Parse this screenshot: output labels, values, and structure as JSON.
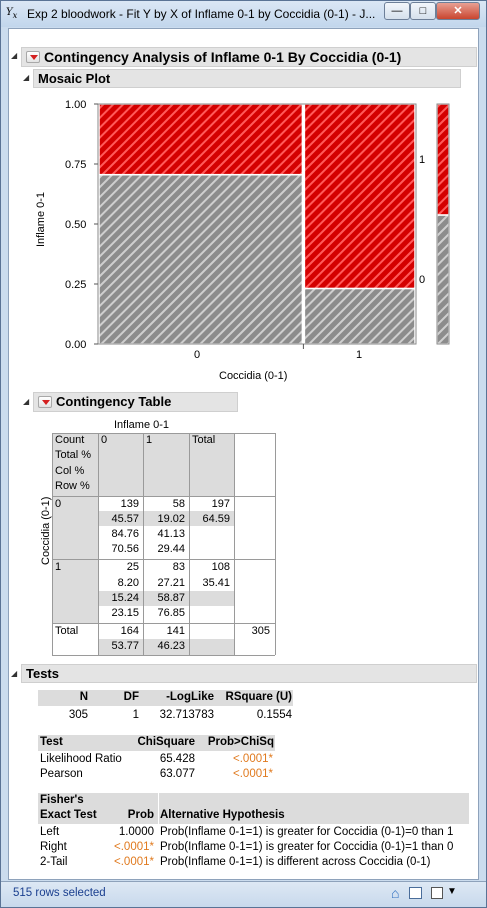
{
  "window": {
    "icon": "jmp-fit-y-by-x-icon",
    "title": "Exp 2 bloodwork - Fit Y by X of Inflame 0-1 by Coccidia (0-1) - J...",
    "min": "—",
    "max": "□",
    "close": "✕"
  },
  "report": {
    "title": "Contingency Analysis of Inflame 0-1 By Coccidia (0-1)"
  },
  "mosaic": {
    "header": "Mosaic Plot",
    "ylabel": "Inflame 0-1",
    "xlabel": "Coccidia (0-1)",
    "yticks": [
      "1.00",
      "0.75",
      "0.50",
      "0.25",
      "0.00"
    ],
    "xticks": [
      "0",
      "1"
    ],
    "side_labels": [
      "1",
      "0"
    ],
    "colors": {
      "level_1": "#e41a1c",
      "level_0": "#a0a0a0"
    }
  },
  "chart_data": {
    "type": "mosaic",
    "x_variable": "Coccidia (0-1)",
    "y_variable": "Inflame 0-1",
    "x_categories": [
      "0",
      "1"
    ],
    "x_widths": [
      0.6459,
      0.3541
    ],
    "stacks": [
      {
        "x": "0",
        "level_0": 0.7056,
        "level_1": 0.2944
      },
      {
        "x": "1",
        "level_0": 0.2315,
        "level_1": 0.7685
      }
    ],
    "marginal": {
      "level_0": 0.5377,
      "level_1": 0.4623
    },
    "ylim": [
      0,
      1
    ]
  },
  "contingency": {
    "header": "Contingency Table",
    "col_var": "Inflame 0-1",
    "row_var": "Coccidia (0-1)",
    "stat_labels": [
      "Count",
      "Total %",
      "Col %",
      "Row %"
    ],
    "col_headers": [
      "0",
      "1",
      "Total"
    ],
    "rows": [
      {
        "label": "0",
        "c0": [
          "139",
          "45.57",
          "84.76",
          "70.56"
        ],
        "c1": [
          "58",
          "19.02",
          "41.13",
          "29.44"
        ],
        "total": [
          "197",
          "64.59"
        ]
      },
      {
        "label": "1",
        "c0": [
          "25",
          "8.20",
          "15.24",
          "23.15"
        ],
        "c1": [
          "83",
          "27.21",
          "58.87",
          "76.85"
        ],
        "total": [
          "108",
          "35.41"
        ]
      }
    ],
    "total_row": {
      "label": "Total",
      "c0": [
        "164",
        "53.77"
      ],
      "c1": [
        "141",
        "46.23"
      ],
      "total": [
        "305"
      ]
    }
  },
  "tests": {
    "header": "Tests",
    "summary_headers": [
      "N",
      "DF",
      "-LogLike",
      "RSquare (U)"
    ],
    "summary_values": [
      "305",
      "1",
      "32.713783",
      "0.1554"
    ],
    "chi_headers": [
      "Test",
      "ChiSquare",
      "Prob>ChiSq"
    ],
    "chi_rows": [
      {
        "test": "Likelihood Ratio",
        "chisq": "65.428",
        "prob": "<.0001*"
      },
      {
        "test": "Pearson",
        "chisq": "63.077",
        "prob": "<.0001*"
      }
    ],
    "fisher_headers": [
      "Fisher's",
      "Exact Test",
      "Prob",
      "Alternative Hypothesis"
    ],
    "fisher_rows": [
      {
        "test": "Left",
        "prob": "1.0000",
        "hyp": "Prob(Inflame 0-1=1) is greater for Coccidia (0-1)=0 than 1"
      },
      {
        "test": "Right",
        "prob": "<.0001*",
        "hyp": "Prob(Inflame 0-1=1) is greater for Coccidia (0-1)=1 than 0"
      },
      {
        "test": "2-Tail",
        "prob": "<.0001*",
        "hyp": "Prob(Inflame 0-1=1) is different across Coccidia (0-1)"
      }
    ]
  },
  "status": {
    "rows_selected": "515 rows selected",
    "icons": [
      "home-up-icon",
      "table-view-icon",
      "options-menu-icon"
    ]
  }
}
